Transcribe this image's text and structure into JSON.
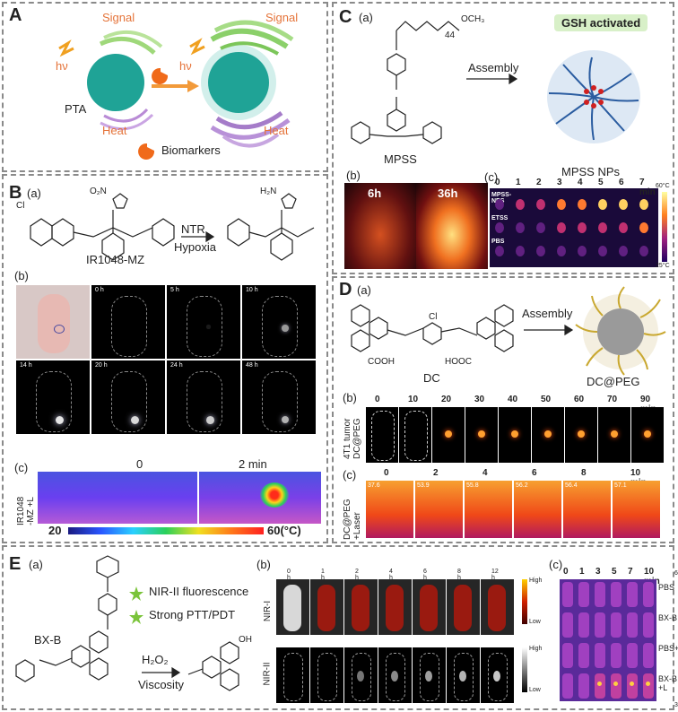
{
  "panelA": {
    "letter": "A",
    "signal_left": "Signal",
    "signal_right": "Signal",
    "hv_left": "hν",
    "hv_right": "hν",
    "pta": "PTA",
    "heat_left": "Heat",
    "heat_right": "Heat",
    "biomarkers": "Biomarkers"
  },
  "panelB": {
    "letter": "B",
    "sub_a": "(a)",
    "sub_b": "(b)",
    "sub_c": "(c)",
    "compound": "IR1048-MZ",
    "arrow_top": "NTR",
    "arrow_bottom": "Hypoxia",
    "no2": "O₂N",
    "h2n": "H₂N",
    "cl": "Cl",
    "times": [
      "0 h",
      "5 h",
      "10 h",
      "14 h",
      "20 h",
      "24 h",
      "48 h"
    ],
    "c_label": "IR1048\n-MZ +L",
    "c_t0": "0",
    "c_t1": "2 min",
    "scale_min": "20",
    "scale_max": "60(°C)"
  },
  "panelC": {
    "letter": "C",
    "sub_a": "(a)",
    "sub_b": "(b)",
    "sub_c": "(c)",
    "badge": "GSH activated",
    "assembly": "Assembly",
    "compound": "MPSS",
    "peg_n": "44",
    "och3": "OCH₃",
    "title_c": "MPSS NPs",
    "b_times": [
      "6h",
      "36h"
    ],
    "c_cols": [
      "0",
      "1",
      "2",
      "3",
      "4",
      "5",
      "6",
      "7 min"
    ],
    "c_rows": [
      "MPSS-NPS",
      "ETSS",
      "PBS"
    ],
    "temp_hi": "60°C",
    "temp_lo": "25°C"
  },
  "panelD": {
    "letter": "D",
    "sub_a": "(a)",
    "sub_b": "(b)",
    "sub_c": "(c)",
    "compound": "DC",
    "product": "DC@PEG",
    "assembly": "Assembly",
    "cooh": "COOH",
    "hooc": "HOOC",
    "cl": "Cl",
    "b_label": "4T1 tumor\nDC@PEG",
    "b_times": [
      "0",
      "10",
      "20",
      "30",
      "40",
      "50",
      "60",
      "70",
      "90 min"
    ],
    "c_label": "DC@PEG\n+Laser",
    "c_times": [
      "0",
      "2",
      "4",
      "6",
      "8",
      "10 min"
    ],
    "c_temps": [
      "37.6",
      "53.9",
      "55.8",
      "56.2",
      "56.4",
      "57.1"
    ]
  },
  "panelE": {
    "letter": "E",
    "sub_a": "(a)",
    "sub_b": "(b)",
    "sub_c": "(c)",
    "compound": "BX-B",
    "feat1": "NIR-II fluorescence",
    "feat2": "Strong PTT/PDT",
    "arrow_top": "H₂O₂",
    "arrow_bottom": "Viscosity",
    "oh": "OH",
    "b_times": [
      "0 h",
      "1 h",
      "2 h",
      "4 h",
      "6 h",
      "8 h",
      "12 h"
    ],
    "nir1": "NIR-I",
    "nir2": "NIR-II",
    "high": "High",
    "low": "Low",
    "c_cols": [
      "0",
      "1",
      "3",
      "5",
      "7",
      "10 min"
    ],
    "c_rows": [
      "PBS",
      "BX-B",
      "PBS+L",
      "BX-B\n+L"
    ],
    "temp_hi": "60°C",
    "temp_lo": "30°C"
  }
}
